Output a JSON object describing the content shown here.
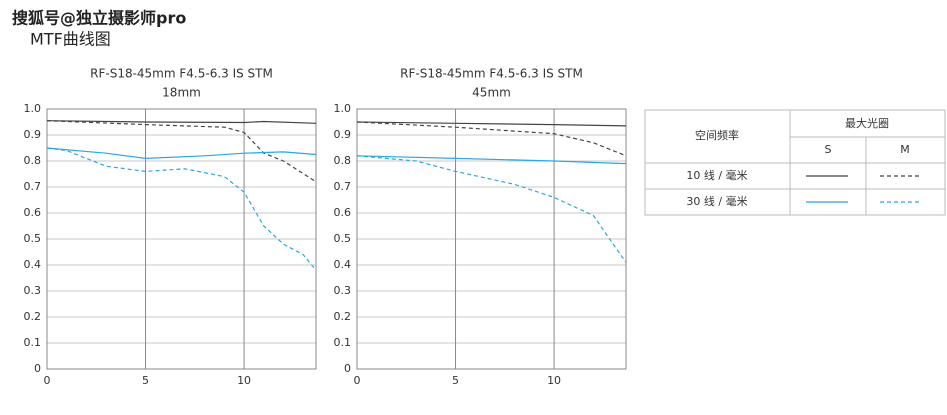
{
  "watermark": "搜狐号@独立摄影师pro",
  "heading": "MTF曲线图",
  "chart_data": [
    {
      "type": "line",
      "title": "RF-S18-45mm F4.5-6.3 IS STM",
      "subtitle": "18mm",
      "xlim": [
        0,
        13.65
      ],
      "xticks": [
        0,
        5,
        10
      ],
      "ylim": [
        0,
        1
      ],
      "yticks": [
        0,
        0.1,
        0.2,
        0.3,
        0.4,
        0.5,
        0.6,
        0.7,
        0.8,
        0.9,
        {
          "value": 1,
          "label": "1.0"
        }
      ],
      "grid": true,
      "series": [
        {
          "color": "#444444",
          "dashed": false,
          "x": [
            0,
            5,
            10,
            11,
            13.65
          ],
          "values": [
            0.955,
            0.95,
            0.948,
            0.952,
            0.945
          ]
        },
        {
          "color": "#444444",
          "dashed": true,
          "x": [
            0,
            5,
            9,
            10,
            11,
            12,
            13.65
          ],
          "values": [
            0.955,
            0.94,
            0.93,
            0.91,
            0.83,
            0.8,
            0.72
          ]
        },
        {
          "color": "#29a8e0",
          "dashed": false,
          "x": [
            0,
            3,
            5,
            8,
            10,
            12,
            13.65
          ],
          "values": [
            0.85,
            0.83,
            0.81,
            0.82,
            0.83,
            0.835,
            0.825
          ]
        },
        {
          "color": "#29a8e0",
          "dashed": true,
          "x": [
            0,
            1,
            3,
            5,
            7,
            9,
            10,
            11,
            12,
            13,
            13.65
          ],
          "values": [
            0.85,
            0.84,
            0.78,
            0.76,
            0.77,
            0.74,
            0.68,
            0.55,
            0.48,
            0.44,
            0.38
          ]
        }
      ]
    },
    {
      "type": "line",
      "title": "RF-S18-45mm F4.5-6.3 IS STM",
      "subtitle": "45mm",
      "xlim": [
        0,
        13.65
      ],
      "xticks": [
        0,
        5,
        10
      ],
      "ylim": [
        0,
        1
      ],
      "yticks": [
        0,
        0.1,
        0.2,
        0.3,
        0.4,
        0.5,
        0.6,
        0.7,
        0.8,
        0.9,
        {
          "value": 1,
          "label": "1.0"
        }
      ],
      "grid": true,
      "series": [
        {
          "color": "#444444",
          "dashed": false,
          "x": [
            0,
            5,
            10,
            13.65
          ],
          "values": [
            0.95,
            0.945,
            0.94,
            0.935
          ]
        },
        {
          "color": "#444444",
          "dashed": true,
          "x": [
            0,
            5,
            10,
            12,
            13.65
          ],
          "values": [
            0.95,
            0.93,
            0.905,
            0.87,
            0.82
          ]
        },
        {
          "color": "#29a8e0",
          "dashed": false,
          "x": [
            0,
            5,
            10,
            13.65
          ],
          "values": [
            0.82,
            0.81,
            0.8,
            0.79
          ]
        },
        {
          "color": "#29a8e0",
          "dashed": true,
          "x": [
            0,
            3,
            5,
            8,
            10,
            12,
            13,
            13.65
          ],
          "values": [
            0.82,
            0.8,
            0.76,
            0.71,
            0.66,
            0.59,
            0.48,
            0.41
          ]
        }
      ]
    }
  ],
  "legend_table": {
    "header": [
      "空间频率",
      "最大光圈"
    ],
    "subheader": [
      "S",
      "M"
    ],
    "rows": [
      "10 线 / 毫米",
      "30 线 / 毫米"
    ]
  }
}
